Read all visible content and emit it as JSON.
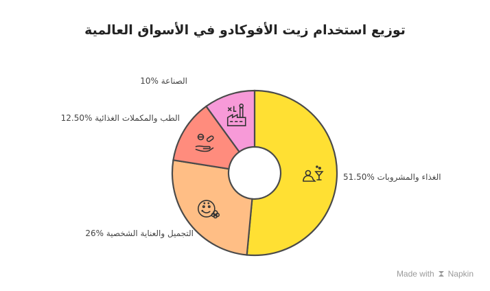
{
  "chart_data": {
    "type": "pie",
    "title": "توزيع استخدام زيت الأفوكادو في الأسواق العالمية",
    "slices": [
      {
        "label": "الغذاء والمشروبات",
        "value": 51.5,
        "value_label": "51.50%",
        "color": "#FFE033",
        "icon": "food-drink-icon"
      },
      {
        "label": "التجميل والعناية الشخصية",
        "value": 26,
        "value_label": "26%",
        "color": "#FFBE85",
        "icon": "face-care-icon"
      },
      {
        "label": "الطب والمكملات الغذائية",
        "value": 12.5,
        "value_label": "12.50%",
        "color": "#FF8C7D",
        "icon": "medicine-hand-icon"
      },
      {
        "label": "الصناعة",
        "value": 10,
        "value_label": "10%",
        "color": "#F79AD8",
        "icon": "factory-icon"
      }
    ]
  },
  "watermark": {
    "prefix": "Made with",
    "brand": "Napkin"
  }
}
